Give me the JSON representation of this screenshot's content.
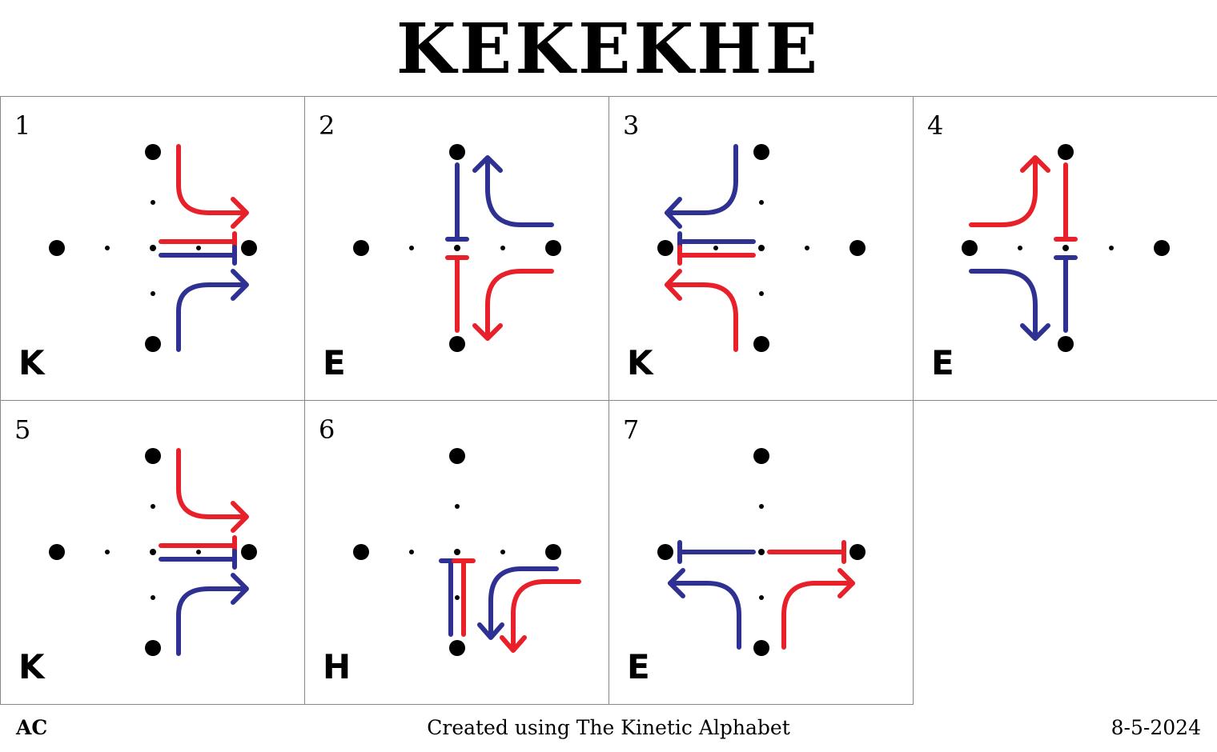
{
  "title": "KEKEKHE",
  "panels": [
    {
      "number": "1",
      "letter": "K"
    },
    {
      "number": "2",
      "letter": "E"
    },
    {
      "number": "3",
      "letter": "K"
    },
    {
      "number": "4",
      "letter": "E"
    },
    {
      "number": "5",
      "letter": "K"
    },
    {
      "number": "6",
      "letter": "H"
    },
    {
      "number": "7",
      "letter": "E"
    }
  ],
  "footer": {
    "left": "AC",
    "center": "Created using The Kinetic Alphabet",
    "right": "8-5-2024"
  },
  "colors": {
    "red": "#e8202a",
    "blue": "#2e3192",
    "dot": "#000000",
    "border": "#888888"
  }
}
